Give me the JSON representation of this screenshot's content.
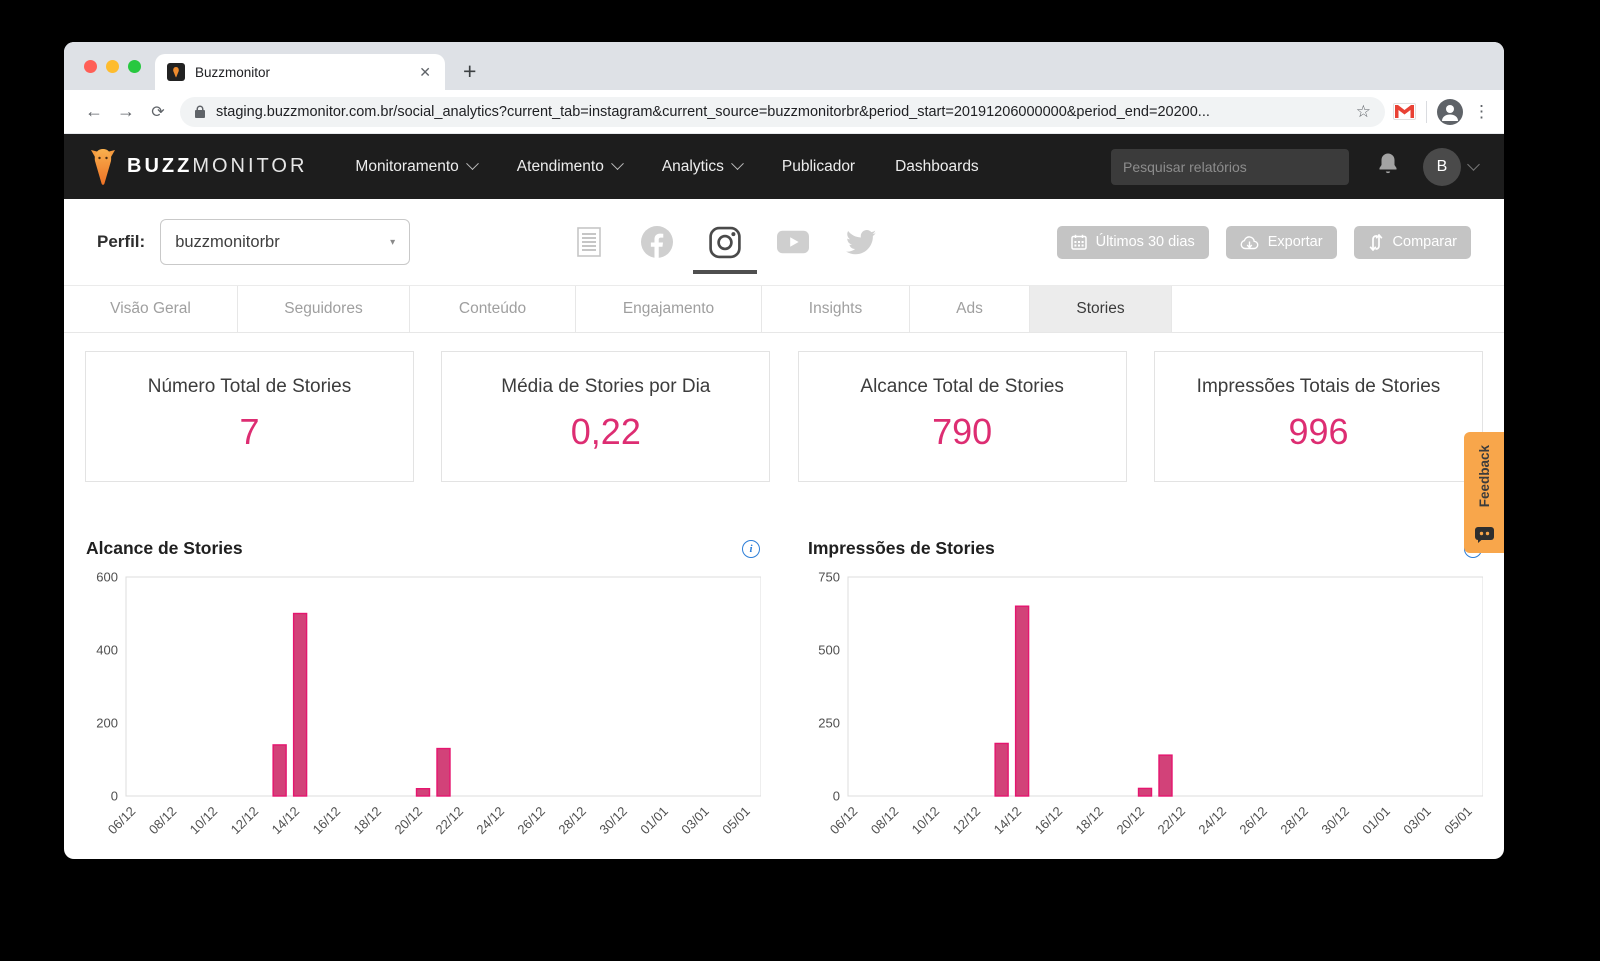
{
  "browser": {
    "tab_title": "Buzzmonitor",
    "url": "staging.buzzmonitor.com.br/social_analytics?current_tab=instagram&current_source=buzzmonitorbr&period_start=20191206000000&period_end=20200...",
    "icons": [
      "back-icon",
      "forward-icon",
      "reload-icon",
      "lock-icon",
      "star-icon",
      "gmail-icon",
      "profile-icon",
      "menu-dots-icon"
    ]
  },
  "header": {
    "brand_buzz": "BUZZ",
    "brand_monitor": "MONITOR",
    "nav": [
      {
        "label": "Monitoramento",
        "dropdown": true
      },
      {
        "label": "Atendimento",
        "dropdown": true
      },
      {
        "label": "Analytics",
        "dropdown": true
      },
      {
        "label": "Publicador",
        "dropdown": false
      },
      {
        "label": "Dashboards",
        "dropdown": false
      }
    ],
    "search_placeholder": "Pesquisar relatórios",
    "avatar_initial": "B"
  },
  "profile_bar": {
    "label": "Perfil:",
    "selected_profile": "buzzmonitorbr",
    "source_icons": [
      "report-icon",
      "facebook-icon",
      "instagram-icon",
      "youtube-icon",
      "twitter-icon"
    ],
    "active_source": "instagram",
    "buttons": [
      {
        "label": "Últimos 30 dias",
        "icon": "calendar-icon"
      },
      {
        "label": "Exportar",
        "icon": "cloud-download-icon"
      },
      {
        "label": "Comparar",
        "icon": "compare-icon"
      }
    ]
  },
  "tabs": {
    "items": [
      "Visão Geral",
      "Seguidores",
      "Conteúdo",
      "Engajamento",
      "Insights",
      "Ads",
      "Stories"
    ],
    "active": "Stories"
  },
  "metrics": [
    {
      "title": "Número Total de Stories",
      "value": "7"
    },
    {
      "title": "Média de Stories por Dia",
      "value": "0,22"
    },
    {
      "title": "Alcance Total de Stories",
      "value": "790"
    },
    {
      "title": "Impressões Totais de Stories",
      "value": "996"
    }
  ],
  "feedback_tab": {
    "label": "Feedback",
    "icon": "chat-robot-icon"
  },
  "colors": {
    "accent_pink": "#dd2d72",
    "bar_fill": "#d24279",
    "bar_stroke": "#e5156f",
    "feedback_orange": "#f8a64b",
    "header_bg": "#1d1d1d"
  },
  "chart_data": [
    {
      "type": "bar",
      "title": "Alcance de Stories",
      "ylabel": "",
      "xlabel": "",
      "ylim": [
        0,
        600
      ],
      "yticks": [
        0,
        200,
        400,
        600
      ],
      "grid": false,
      "legend": "none",
      "days": [
        "06/12",
        "07/12",
        "08/12",
        "09/12",
        "10/12",
        "11/12",
        "12/12",
        "13/12",
        "14/12",
        "15/12",
        "16/12",
        "17/12",
        "18/12",
        "19/12",
        "20/12",
        "21/12",
        "22/12",
        "23/12",
        "24/12",
        "25/12",
        "26/12",
        "27/12",
        "28/12",
        "29/12",
        "30/12",
        "31/12",
        "01/01",
        "02/01",
        "03/01",
        "04/01",
        "05/01"
      ],
      "xticks": [
        "06/12",
        "08/12",
        "10/12",
        "12/12",
        "14/12",
        "16/12",
        "18/12",
        "20/12",
        "22/12",
        "24/12",
        "26/12",
        "28/12",
        "30/12",
        "01/01",
        "03/01",
        "05/01"
      ],
      "bars": [
        {
          "date": "13/12",
          "value": 140
        },
        {
          "date": "14/12",
          "value": 500
        },
        {
          "date": "20/12",
          "value": 20
        },
        {
          "date": "21/12",
          "value": 130
        }
      ]
    },
    {
      "type": "bar",
      "title": "Impressões de Stories",
      "ylabel": "",
      "xlabel": "",
      "ylim": [
        0,
        750
      ],
      "yticks": [
        0,
        250,
        500,
        750
      ],
      "grid": false,
      "legend": "none",
      "days": [
        "06/12",
        "07/12",
        "08/12",
        "09/12",
        "10/12",
        "11/12",
        "12/12",
        "13/12",
        "14/12",
        "15/12",
        "16/12",
        "17/12",
        "18/12",
        "19/12",
        "20/12",
        "21/12",
        "22/12",
        "23/12",
        "24/12",
        "25/12",
        "26/12",
        "27/12",
        "28/12",
        "29/12",
        "30/12",
        "31/12",
        "01/01",
        "02/01",
        "03/01",
        "04/01",
        "05/01"
      ],
      "xticks": [
        "06/12",
        "08/12",
        "10/12",
        "12/12",
        "14/12",
        "16/12",
        "18/12",
        "20/12",
        "22/12",
        "24/12",
        "26/12",
        "28/12",
        "30/12",
        "01/01",
        "03/01",
        "05/01"
      ],
      "bars": [
        {
          "date": "13/12",
          "value": 180
        },
        {
          "date": "14/12",
          "value": 650
        },
        {
          "date": "20/12",
          "value": 26
        },
        {
          "date": "21/12",
          "value": 140
        }
      ]
    }
  ]
}
